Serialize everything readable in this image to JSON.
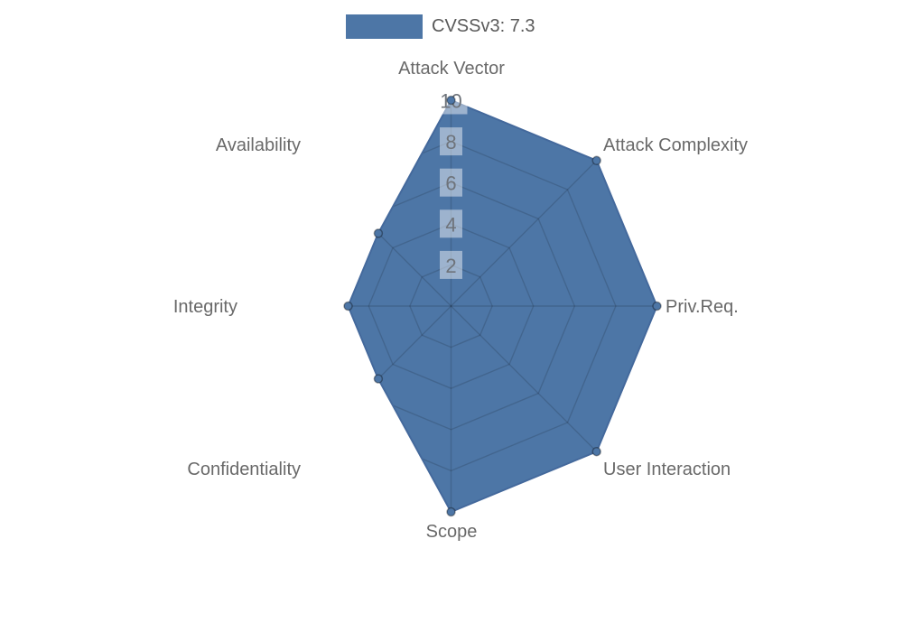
{
  "page": {
    "background": "#ffffff"
  },
  "legend": {
    "label": "CVSSv3: 7.3",
    "swatch_color": "#4d76a6",
    "text_color": "#5a5a5a"
  },
  "chart_data": {
    "type": "radar",
    "title": "",
    "categories": [
      "Attack Vector",
      "Attack Complexity",
      "Priv.Req.",
      "User Interaction",
      "Scope",
      "Confidentiality",
      "Integrity",
      "Availability"
    ],
    "series": [
      {
        "name": "CVSSv3: 7.3",
        "values": [
          10,
          10,
          10,
          10,
          10,
          5,
          5,
          5
        ]
      }
    ],
    "ticks": [
      2,
      4,
      6,
      8,
      10
    ],
    "rlim": [
      0,
      10
    ],
    "grid": "on",
    "grid_shape": "polygon",
    "legend_position": "top-center",
    "colors": {
      "fill": "#4d76a6",
      "outline": "#44699c",
      "point": "#4d76a6",
      "point_border": "rgba(0,0,0,0.35)",
      "grid_line": "rgba(0,0,0,0.14)",
      "tick_text": "#6e737a",
      "tick_backdrop": "rgba(255,255,255,0.45)",
      "axis_label": "#696969"
    }
  }
}
